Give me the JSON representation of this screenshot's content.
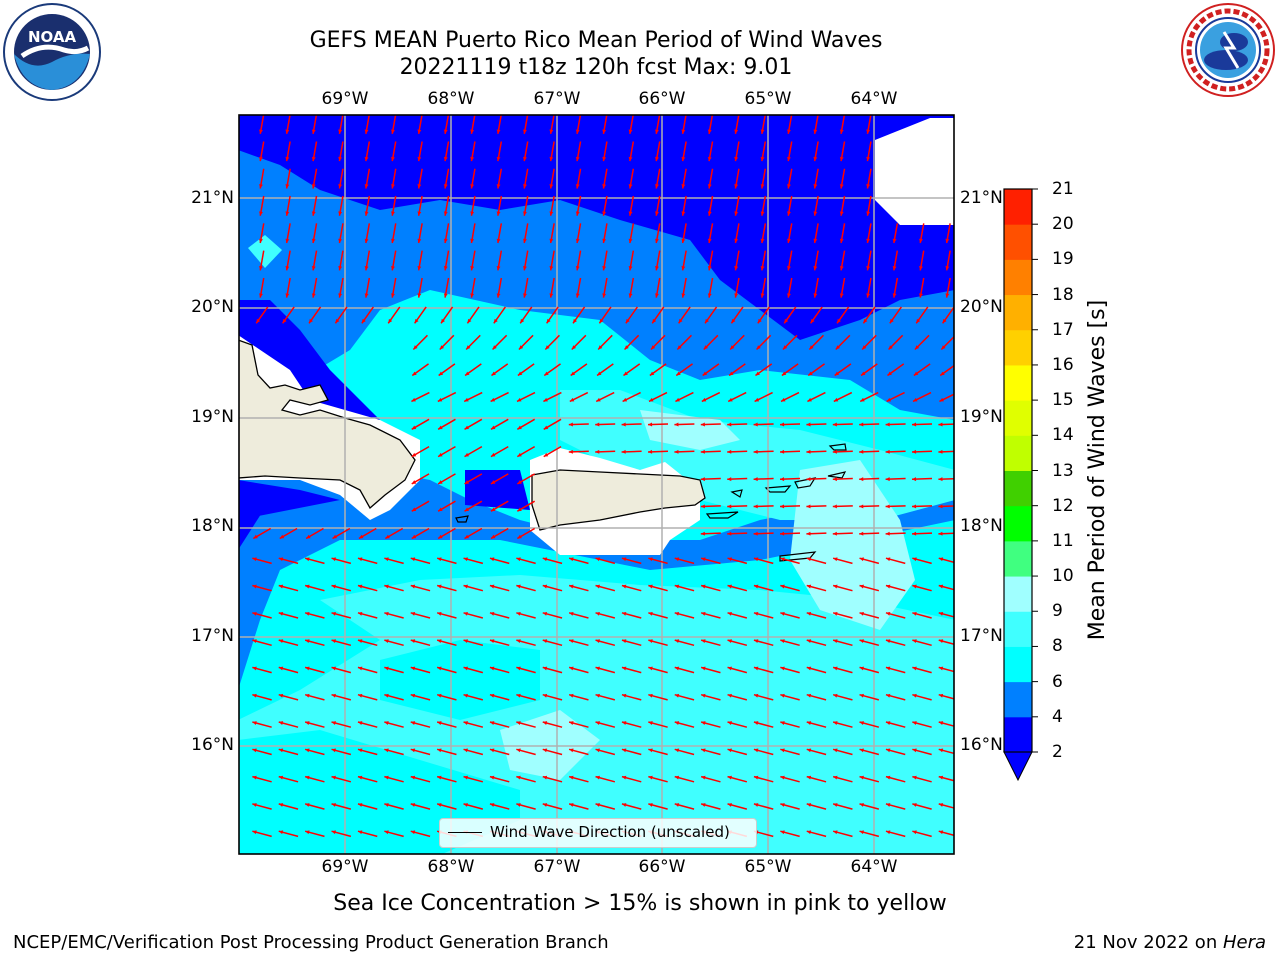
{
  "header": {
    "title_line1": "GEFS MEAN Puerto Rico Mean Period of Wind Waves",
    "title_line2": "20221119 t18z 120h fcst   Max: 9.01"
  },
  "logos": {
    "noaa_text": "NOAA",
    "nws_text": "NATIONAL WEATHER SERVICE"
  },
  "map": {
    "lon_labels": [
      "69°W",
      "68°W",
      "67°W",
      "66°W",
      "65°W",
      "64°W"
    ],
    "lat_labels": [
      "21°N",
      "20°N",
      "19°N",
      "18°N",
      "17°N",
      "16°N"
    ],
    "legend_label": "Wind Wave Direction (unscaled)",
    "colors": {
      "land": "#eeecdc",
      "gridline": "#b0b0b0",
      "arrow": "#ff0000",
      "coast": "#000000"
    }
  },
  "colorbar": {
    "title": "Mean Period of Wind Waves [s]",
    "tick_labels": [
      "2",
      "4",
      "6",
      "8",
      "9",
      "10",
      "11",
      "12",
      "13",
      "14",
      "15",
      "16",
      "17",
      "18",
      "19",
      "20",
      "21"
    ],
    "colors": [
      "#0000ff",
      "#0080ff",
      "#00ffff",
      "#40ffff",
      "#a0ffff",
      "#40ff80",
      "#00ff00",
      "#40d000",
      "#c0ff00",
      "#e0ff00",
      "#ffff00",
      "#ffd000",
      "#ffb000",
      "#ff8000",
      "#ff5000",
      "#ff2000",
      "#ff0000"
    ],
    "under_color": "#0000ff"
  },
  "chart_data": {
    "type": "heatmap",
    "title": "GEFS MEAN Puerto Rico Mean Period of Wind Waves",
    "subtitle": "20221119 t18z 120h fcst   Max: 9.01",
    "colorbar_label": "Mean Period of Wind Waves [s]",
    "colorbar_levels": [
      2,
      4,
      6,
      8,
      9,
      10,
      11,
      12,
      13,
      14,
      15,
      16,
      17,
      18,
      19,
      20,
      21
    ],
    "max_value": 9.01,
    "lon_range": [
      -70,
      -63.2
    ],
    "lat_range": [
      15,
      21.75
    ],
    "grid": true
  },
  "footer": {
    "note": "Sea Ice Concentration > 15% is shown in pink to yellow",
    "left": "NCEP/EMC/Verification Post Processing Product Generation Branch",
    "date": "21 Nov 2022 on ",
    "machine": "Hera"
  }
}
